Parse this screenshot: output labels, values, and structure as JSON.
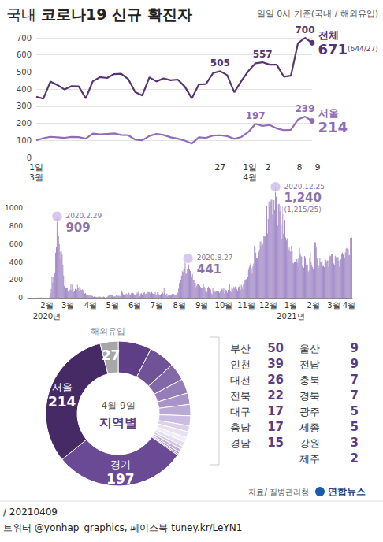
{
  "title": "국내 코로나19 신규 확진자",
  "subtitle": "일일 0시 기준(국내 / 해외유입)",
  "source": "자료/ 질병관리청",
  "credit": "연합뉴스",
  "footer": [
    "/ 20210409",
    "트위터 @yonhap_graphics, 페이스북 tuney.kr/LeYN1"
  ],
  "chart_data": [
    {
      "type": "line",
      "categories": [
        "1일\n3월",
        null,
        null,
        null,
        null,
        null,
        null,
        null,
        null,
        null,
        null,
        null,
        null,
        null,
        null,
        null,
        null,
        null,
        null,
        null,
        null,
        null,
        null,
        null,
        null,
        null,
        "27",
        null,
        null,
        null,
        null,
        "1일\n4월",
        "2",
        null,
        null,
        null,
        null,
        null,
        "8",
        "9"
      ],
      "ylim": [
        0,
        700
      ],
      "yticks": [
        0,
        100,
        200,
        300,
        400,
        500,
        600,
        700
      ],
      "grid": true,
      "data_labels": true,
      "series": [
        {
          "name": "전체",
          "color": "#553670",
          "note": "(644/27)",
          "values": [
            355,
            344,
            444,
            424,
            398,
            418,
            416,
            346,
            446,
            470,
            465,
            488,
            490,
            459,
            382,
            363,
            469,
            445,
            463,
            452,
            456,
            415,
            346,
            428,
            430,
            494,
            505,
            482,
            382,
            447,
            506,
            551,
            557,
            543,
            543,
            473,
            478,
            668,
            700,
            671
          ],
          "value_labels": [
            null,
            null,
            null,
            null,
            null,
            null,
            null,
            null,
            null,
            null,
            null,
            null,
            null,
            null,
            null,
            null,
            null,
            null,
            null,
            null,
            null,
            null,
            null,
            null,
            null,
            null,
            "505",
            null,
            null,
            null,
            null,
            null,
            "557",
            null,
            null,
            null,
            null,
            null,
            "700",
            "671"
          ]
        },
        {
          "name": "서울",
          "color": "#8f6bb8",
          "values": [
            100,
            113,
            121,
            118,
            115,
            120,
            119,
            110,
            140,
            135,
            138,
            141,
            132,
            130,
            104,
            101,
            126,
            138,
            132,
            118,
            110,
            99,
            82,
            118,
            115,
            128,
            130,
            125,
            109,
            120,
            150,
            197,
            185,
            190,
            170,
            160,
            162,
            222,
            239,
            214
          ],
          "value_labels": [
            null,
            null,
            null,
            null,
            null,
            null,
            null,
            null,
            null,
            null,
            null,
            null,
            null,
            null,
            null,
            null,
            null,
            null,
            null,
            null,
            null,
            null,
            null,
            null,
            null,
            null,
            null,
            null,
            null,
            null,
            null,
            "197",
            null,
            null,
            null,
            null,
            null,
            null,
            "239",
            "214"
          ]
        }
      ]
    },
    {
      "type": "bar",
      "color": "#a48cc8",
      "grid": false,
      "ylim": [
        0,
        1250
      ],
      "yticks": [
        0,
        200,
        400,
        600,
        800,
        1000
      ],
      "categories": [
        null,
        null,
        null,
        null,
        null,
        null,
        null,
        null,
        null,
        null,
        null,
        null,
        null,
        null,
        null,
        null,
        null,
        null,
        null,
        null,
        null,
        null,
        null,
        null,
        null,
        null,
        "2월",
        null,
        null,
        null,
        null,
        null,
        null,
        null,
        null,
        null,
        null,
        null,
        null,
        null,
        null,
        null,
        null,
        null,
        null,
        null,
        null,
        null,
        null,
        null,
        null,
        null,
        null,
        null,
        null,
        "3월",
        null,
        null,
        null,
        null,
        null,
        null,
        null,
        null,
        null,
        null,
        null,
        null,
        null,
        null,
        null,
        null,
        null,
        null,
        null,
        null,
        null,
        null,
        null,
        null,
        null,
        null,
        null,
        null,
        null,
        null,
        "4월",
        null,
        null,
        null,
        null,
        null,
        null,
        null,
        null,
        null,
        null,
        null,
        null,
        null,
        null,
        null,
        null,
        null,
        null,
        null,
        null,
        null,
        null,
        null,
        null,
        null,
        null,
        null,
        null,
        null,
        "5월",
        null,
        null,
        null,
        null,
        null,
        null,
        null,
        null,
        null,
        null,
        null,
        null,
        null,
        null,
        null,
        null,
        null,
        null,
        null,
        null,
        null,
        null,
        null,
        null,
        null,
        null,
        null,
        null,
        null,
        null,
        "6월",
        null,
        null,
        null,
        null,
        null,
        null,
        null,
        null,
        null,
        null,
        null,
        null,
        null,
        null,
        null,
        null,
        null,
        null,
        null,
        null,
        null,
        null,
        null,
        null,
        null,
        null,
        null,
        null,
        null,
        "7월",
        null,
        null,
        null,
        null,
        null,
        null,
        null,
        null,
        null,
        null,
        null,
        null,
        null,
        null,
        null,
        null,
        null,
        null,
        null,
        null,
        null,
        null,
        null,
        null,
        null,
        null,
        null,
        null,
        null,
        null,
        "8월",
        null,
        null,
        null,
        null,
        null,
        null,
        null,
        null,
        null,
        null,
        null,
        null,
        null,
        null,
        null,
        null,
        null,
        null,
        null,
        null,
        null,
        null,
        null,
        null,
        null,
        null,
        null,
        null,
        null,
        null,
        "9월",
        null,
        null,
        null,
        null,
        null,
        null,
        null,
        null,
        null,
        null,
        null,
        null,
        null,
        null,
        null,
        null,
        null,
        null,
        null,
        null,
        null,
        null,
        null,
        null,
        null,
        null,
        null,
        null,
        null,
        "10월",
        null,
        null,
        null,
        null,
        null,
        null,
        null,
        null,
        null,
        null,
        null,
        null,
        null,
        null,
        null,
        null,
        null,
        null,
        null,
        null,
        null,
        null,
        null,
        null,
        null,
        null,
        null,
        null,
        null,
        null,
        "11월",
        null,
        null,
        null,
        null,
        null,
        null,
        null,
        null,
        null,
        null,
        null,
        null,
        null,
        null,
        null,
        null,
        null,
        null,
        null,
        null,
        null,
        null,
        null,
        null,
        null,
        null,
        null,
        null,
        null,
        "12월",
        null,
        null,
        null,
        null,
        null,
        null,
        null,
        null,
        null,
        null,
        null,
        null,
        null,
        null,
        null,
        null,
        null,
        null,
        null,
        null,
        null,
        null,
        null,
        null,
        null,
        null,
        null,
        null,
        null,
        null,
        "1월",
        null,
        null,
        null,
        null,
        null,
        null,
        null,
        null,
        null,
        null,
        null,
        null,
        null,
        null,
        null,
        null,
        null,
        null,
        null,
        null,
        null,
        null,
        null,
        null,
        null,
        null,
        null,
        null,
        null,
        null,
        "2월",
        null,
        null,
        null,
        null,
        null,
        null,
        null,
        null,
        null,
        null,
        null,
        null,
        null,
        null,
        null,
        null,
        null,
        null,
        null,
        null,
        null,
        null,
        null,
        null,
        null,
        null,
        null,
        "3월",
        null,
        null,
        null,
        null,
        null,
        null,
        null,
        null,
        null,
        null,
        null,
        null,
        null,
        null,
        null,
        null,
        null,
        null,
        null,
        null,
        "4월",
        null,
        null,
        null,
        null
      ],
      "values": [
        1,
        0,
        0,
        0,
        1,
        0,
        1,
        1,
        0,
        0,
        2,
        1,
        1,
        3,
        0,
        1,
        2,
        1,
        4,
        1,
        0,
        3,
        1,
        0,
        0,
        0,
        1,
        1,
        1,
        1,
        20,
        53,
        100,
        229,
        169,
        231,
        144,
        284,
        505,
        571,
        909,
        595,
        686,
        600,
        516,
        438,
        518,
        483,
        367,
        248,
        131,
        242,
        114,
        110,
        107,
        76,
        74,
        84,
        93,
        152,
        87,
        147,
        98,
        64,
        76,
        100,
        104,
        91,
        146,
        105,
        78,
        125,
        101,
        89,
        86,
        94,
        81,
        47,
        47,
        53,
        39,
        27,
        30,
        32,
        25,
        27,
        27,
        22,
        22,
        18,
        8,
        13,
        9,
        11,
        8,
        6,
        10,
        10,
        10,
        14,
        9,
        4,
        9,
        6,
        13,
        8,
        3,
        2,
        4,
        12,
        18,
        34,
        35,
        27,
        26,
        29,
        27,
        19,
        13,
        15,
        13,
        32,
        12,
        20,
        23,
        25,
        16,
        19,
        40,
        79,
        58,
        39,
        27,
        35,
        38,
        49,
        39,
        39,
        51,
        57,
        38,
        38,
        50,
        45,
        56,
        49,
        37,
        34,
        37,
        43,
        59,
        49,
        67,
        48,
        17,
        46,
        51,
        28,
        39,
        51,
        62,
        42,
        43,
        51,
        54,
        63,
        63,
        61,
        48,
        44,
        63,
        50,
        45,
        35,
        44,
        62,
        33,
        39,
        61,
        60,
        39,
        34,
        26,
        45,
        63,
        59,
        41,
        113,
        58,
        25,
        28,
        48,
        18,
        36,
        31,
        30,
        23,
        33,
        43,
        20,
        43,
        36,
        28,
        34,
        28,
        54,
        56,
        103,
        166,
        279,
        197,
        246,
        297,
        288,
        324,
        332,
        397,
        266,
        280,
        320,
        441,
        371,
        323,
        299,
        248,
        235,
        267,
        195,
        198,
        168,
        167,
        119,
        136,
        156,
        155,
        176,
        136,
        121,
        109,
        106,
        113,
        153,
        126,
        110,
        82,
        70,
        61,
        110,
        125,
        114,
        61,
        95,
        50,
        38,
        113,
        77,
        63,
        75,
        64,
        73,
        75,
        114,
        69,
        54,
        72,
        58,
        97,
        102,
        84,
        110,
        47,
        73,
        91,
        76,
        58,
        89,
        121,
        155,
        77,
        61,
        119,
        88,
        103,
        125,
        114,
        127,
        124,
        97,
        75,
        118,
        125,
        145,
        89,
        143,
        126,
        100,
        146,
        143,
        191,
        205,
        208,
        223,
        230,
        313,
        343,
        363,
        386,
        330,
        271,
        349,
        382,
        583,
        569,
        504,
        450,
        438,
        451,
        511,
        540,
        629,
        583,
        631,
        615,
        594,
        686,
        682,
        689,
        950,
        1030,
        718,
        880,
        1078,
        1014,
        1062,
        1097,
        1097,
        926,
        869,
        1092,
        985,
        1240,
        1132,
        970,
        808,
        1045,
        1050,
        967,
        1029,
        824,
        657,
        1020,
        715,
        869,
        870,
        674,
        641,
        665,
        451,
        537,
        562,
        524,
        513,
        580,
        520,
        389,
        386,
        404,
        401,
        346,
        431,
        392,
        437,
        349,
        559,
        497,
        469,
        458,
        355,
        305,
        336,
        467,
        451,
        370,
        393,
        372,
        289,
        303,
        444,
        504,
        403,
        362,
        344,
        326,
        457,
        621,
        621,
        561,
        448,
        416,
        332,
        357,
        440,
        396,
        406,
        415,
        355,
        355,
        344,
        444,
        424,
        398,
        418,
        416,
        346,
        446,
        470,
        465,
        488,
        490,
        459,
        382,
        363,
        469,
        445,
        463,
        452,
        456,
        415,
        346,
        428,
        430,
        494,
        505,
        482,
        382,
        447,
        506,
        551,
        557,
        543,
        543,
        473,
        478,
        668,
        700,
        671
      ],
      "year_labels": [
        {
          "label": "2020년",
          "at": 26
        },
        {
          "label": "2021년",
          "at": 361
        }
      ],
      "annotations": [
        {
          "at": 40,
          "label": "2020.2.29",
          "value_label": "909"
        },
        {
          "at": 220,
          "label": "2020.8.27",
          "value_label": "441"
        },
        {
          "at": 340,
          "label": "2020.12.25",
          "value_label": "1,240",
          "note": "(1,215/25)"
        }
      ]
    },
    {
      "type": "pie",
      "title": "지역별",
      "subtitle": "4월 9일",
      "data_labels": true,
      "categories": [
        "부산",
        "인천",
        "대전",
        "전북",
        "대구",
        "충남",
        "경남",
        "울산",
        "전남",
        "충북",
        "경북",
        "광주",
        "세종",
        "강원",
        "제주",
        "경기",
        "서울",
        "해외유입"
      ],
      "values": [
        50,
        39,
        26,
        22,
        17,
        17,
        15,
        9,
        9,
        7,
        7,
        5,
        5,
        3,
        2,
        197,
        214,
        27
      ],
      "value_labels": [
        null,
        null,
        null,
        null,
        null,
        null,
        null,
        null,
        null,
        null,
        null,
        null,
        null,
        null,
        null,
        "197",
        "214",
        "27"
      ],
      "colors": [
        "#5e3f87",
        "#6f5396",
        "#8268a7",
        "#957eb8",
        "#a894c8",
        "#baa9d5",
        "#cbbde1",
        "#dbd1eb",
        "#e8e1f2",
        "#f1ecf7",
        "#e5ddf0",
        "#d4c8e6",
        "#c1b1da",
        "#ab98cb",
        "#9880bc",
        "#6a4a95",
        "#462a66",
        "#a7a7a7"
      ]
    }
  ]
}
